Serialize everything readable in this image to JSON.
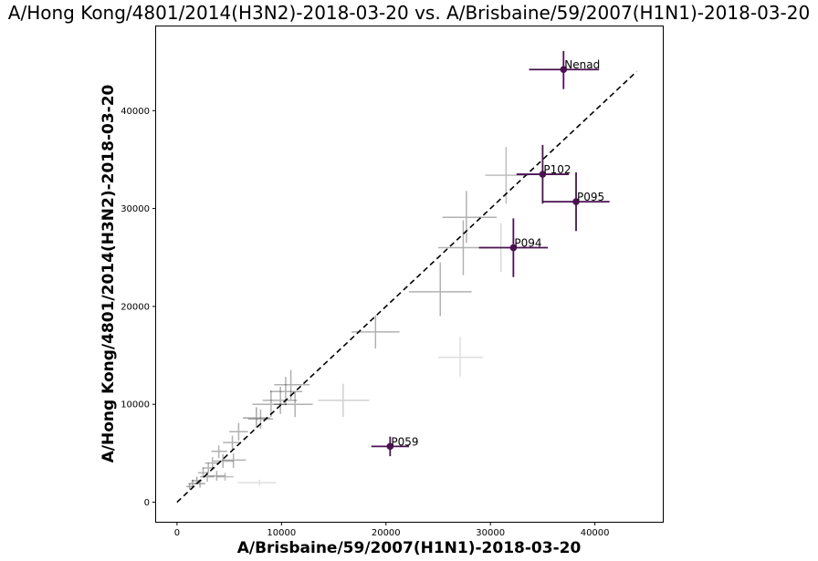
{
  "chart_data": {
    "type": "scatter",
    "title": "A/Hong Kong/4801/2014(H3N2)-2018-03-20 vs. A/Brisbaine/59/2007(H1N1)-2018-03-20",
    "xlabel": "A/Brisbaine/59/2007(H1N1)-2018-03-20",
    "ylabel": "A/Hong Kong/4801/2014(H3N2)-2018-03-20",
    "xlim": [
      -2000,
      46500
    ],
    "ylim": [
      -2000,
      48600
    ],
    "xticks": [
      0,
      10000,
      20000,
      30000,
      40000
    ],
    "yticks": [
      0,
      10000,
      20000,
      30000,
      40000
    ],
    "grid": false,
    "reference_line": {
      "x": [
        0,
        44000
      ],
      "y": [
        0,
        44000
      ],
      "style": "dashed",
      "color": "#000000"
    },
    "highlight_color": "#4a1250",
    "background_color": "#000000",
    "highlighted": [
      {
        "label": "Nenad",
        "x": 37000,
        "y": 44200,
        "xerr": [
          33700,
          40400
        ],
        "yerr": [
          42200,
          46100
        ]
      },
      {
        "label": "P102",
        "x": 35000,
        "y": 33500,
        "xerr": [
          32500,
          37500
        ],
        "yerr": [
          30500,
          36500
        ]
      },
      {
        "label": "P095",
        "x": 38200,
        "y": 30700,
        "xerr": [
          35000,
          41400
        ],
        "yerr": [
          27700,
          33700
        ]
      },
      {
        "label": "P094",
        "x": 32200,
        "y": 26000,
        "xerr": [
          28900,
          35500
        ],
        "yerr": [
          23000,
          29000
        ]
      },
      {
        "label": "P059",
        "x": 20400,
        "y": 5700,
        "xerr": [
          18600,
          22200
        ],
        "yerr": [
          4700,
          6700
        ]
      }
    ],
    "background": [
      {
        "x": 31500,
        "y": 33400,
        "xerr": [
          29500,
          33600
        ],
        "yerr": [
          30500,
          36300
        ],
        "a": 0.25
      },
      {
        "x": 27700,
        "y": 29100,
        "xerr": [
          25400,
          30600
        ],
        "yerr": [
          26500,
          31800
        ],
        "a": 0.3
      },
      {
        "x": 27400,
        "y": 26000,
        "xerr": [
          25000,
          30000
        ],
        "yerr": [
          23200,
          28800
        ],
        "a": 0.3
      },
      {
        "x": 31000,
        "y": 26000,
        "xerr": [
          28900,
          33500
        ],
        "yerr": [
          23500,
          28500
        ],
        "a": 0.15
      },
      {
        "x": 25200,
        "y": 21500,
        "xerr": [
          22200,
          28200
        ],
        "yerr": [
          19000,
          24500
        ],
        "a": 0.3
      },
      {
        "x": 27100,
        "y": 14800,
        "xerr": [
          25000,
          29300
        ],
        "yerr": [
          12800,
          16900
        ],
        "a": 0.12
      },
      {
        "x": 19000,
        "y": 17400,
        "xerr": [
          16700,
          21300
        ],
        "yerr": [
          15700,
          19100
        ],
        "a": 0.3
      },
      {
        "x": 15900,
        "y": 10400,
        "xerr": [
          13500,
          18400
        ],
        "yerr": [
          8700,
          12100
        ],
        "a": 0.18
      },
      {
        "x": 10400,
        "y": 11300,
        "xerr": [
          8900,
          12000
        ],
        "yerr": [
          9900,
          12800
        ],
        "a": 0.3
      },
      {
        "x": 10900,
        "y": 12000,
        "xerr": [
          9300,
          12700
        ],
        "yerr": [
          10500,
          13500
        ],
        "a": 0.3
      },
      {
        "x": 11300,
        "y": 10000,
        "xerr": [
          9300,
          13000
        ],
        "yerr": [
          8700,
          11300
        ],
        "a": 0.3
      },
      {
        "x": 9900,
        "y": 10400,
        "xerr": [
          8200,
          11500
        ],
        "yerr": [
          9000,
          11800
        ],
        "a": 0.3
      },
      {
        "x": 9000,
        "y": 10000,
        "xerr": [
          7200,
          10500
        ],
        "yerr": [
          8700,
          11400
        ],
        "a": 0.3
      },
      {
        "x": 7600,
        "y": 8600,
        "xerr": [
          6300,
          8900
        ],
        "yerr": [
          7600,
          9700
        ],
        "a": 0.35
      },
      {
        "x": 8000,
        "y": 8500,
        "xerr": [
          6800,
          9200
        ],
        "yerr": [
          7500,
          9500
        ],
        "a": 0.3
      },
      {
        "x": 5900,
        "y": 7200,
        "xerr": [
          5000,
          6800
        ],
        "yerr": [
          6300,
          8100
        ],
        "a": 0.3
      },
      {
        "x": 5300,
        "y": 6100,
        "xerr": [
          4400,
          6100
        ],
        "yerr": [
          5400,
          6800
        ],
        "a": 0.3
      },
      {
        "x": 4000,
        "y": 5200,
        "xerr": [
          3300,
          4800
        ],
        "yerr": [
          4500,
          5800
        ],
        "a": 0.3
      },
      {
        "x": 5400,
        "y": 4300,
        "xerr": [
          4300,
          6600
        ],
        "yerr": [
          3500,
          5000
        ],
        "a": 0.3
      },
      {
        "x": 4400,
        "y": 4200,
        "xerr": [
          3500,
          5400
        ],
        "yerr": [
          3500,
          4900
        ],
        "a": 0.3
      },
      {
        "x": 3400,
        "y": 4000,
        "xerr": [
          2700,
          4100
        ],
        "yerr": [
          3400,
          4600
        ],
        "a": 0.3
      },
      {
        "x": 3000,
        "y": 3500,
        "xerr": [
          2400,
          3600
        ],
        "yerr": [
          3000,
          4000
        ],
        "a": 0.3
      },
      {
        "x": 2500,
        "y": 3000,
        "xerr": [
          2000,
          3000
        ],
        "yerr": [
          2500,
          3500
        ],
        "a": 0.3
      },
      {
        "x": 3800,
        "y": 2700,
        "xerr": [
          3000,
          4600
        ],
        "yerr": [
          2200,
          3200
        ],
        "a": 0.3
      },
      {
        "x": 2900,
        "y": 2600,
        "xerr": [
          2200,
          3600
        ],
        "yerr": [
          2100,
          3100
        ],
        "a": 0.3
      },
      {
        "x": 1900,
        "y": 2200,
        "xerr": [
          1400,
          2400
        ],
        "yerr": [
          1800,
          2600
        ],
        "a": 0.35
      },
      {
        "x": 1500,
        "y": 1900,
        "xerr": [
          1100,
          1900
        ],
        "yerr": [
          1500,
          2300
        ],
        "a": 0.35
      },
      {
        "x": 1200,
        "y": 1600,
        "xerr": [
          900,
          1600
        ],
        "yerr": [
          1300,
          1900
        ],
        "a": 0.35
      },
      {
        "x": 2200,
        "y": 1900,
        "xerr": [
          1700,
          2700
        ],
        "yerr": [
          1500,
          2300
        ],
        "a": 0.35
      },
      {
        "x": 7900,
        "y": 2000,
        "xerr": [
          5800,
          9500
        ],
        "yerr": [
          1700,
          2300
        ],
        "a": 0.12
      },
      {
        "x": 4600,
        "y": 2600,
        "xerr": [
          3800,
          5400
        ],
        "yerr": [
          2200,
          3000
        ],
        "a": 0.25
      }
    ]
  }
}
